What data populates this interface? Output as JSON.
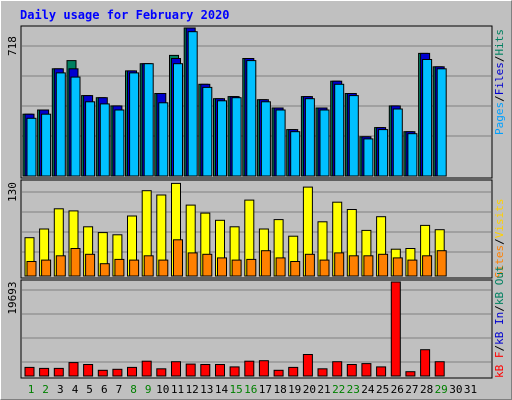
{
  "chart_data": [
    {
      "type": "bar",
      "title": "Daily usage for February 2020",
      "y_label_max": "718",
      "ylabel": [
        {
          "text": "Pages",
          "color": "#00a0ff"
        },
        {
          "text": "Files",
          "color": "#0000d0"
        },
        {
          "text": "Hits",
          "color": "#008060"
        }
      ],
      "ylim": [
        0,
        718
      ],
      "grid": true,
      "categories": [
        "1",
        "2",
        "3",
        "4",
        "5",
        "6",
        "7",
        "8",
        "9",
        "10",
        "11",
        "12",
        "13",
        "14",
        "15",
        "16",
        "17",
        "18",
        "19",
        "20",
        "21",
        "22",
        "23",
        "24",
        "25",
        "26",
        "27",
        "28",
        "29",
        "30",
        "31"
      ],
      "series": [
        {
          "name": "Hits",
          "color": "#008060",
          "values": [
            300,
            320,
            520,
            560,
            390,
            380,
            340,
            510,
            545,
            400,
            585,
            718,
            445,
            375,
            385,
            570,
            370,
            330,
            225,
            385,
            330,
            460,
            400,
            190,
            235,
            340,
            215,
            595,
            530,
            0,
            0
          ]
        },
        {
          "name": "Files",
          "color": "#0000d0",
          "values": [
            300,
            320,
            520,
            520,
            390,
            380,
            340,
            510,
            545,
            400,
            570,
            718,
            445,
            375,
            385,
            570,
            370,
            330,
            225,
            385,
            330,
            460,
            400,
            190,
            235,
            340,
            215,
            595,
            530,
            0,
            0
          ]
        },
        {
          "name": "Pages",
          "color": "#00c0ff",
          "values": [
            280,
            300,
            500,
            480,
            360,
            350,
            320,
            500,
            545,
            355,
            545,
            700,
            430,
            365,
            380,
            560,
            360,
            320,
            215,
            375,
            320,
            445,
            390,
            180,
            225,
            325,
            205,
            565,
            520,
            0,
            0
          ]
        }
      ]
    },
    {
      "type": "bar",
      "y_label_max": "130",
      "ylabel": [
        {
          "text": "Sites",
          "color": "#ff8000"
        },
        {
          "text": "Visits",
          "color": "#ffd000"
        }
      ],
      "ylim": [
        0,
        130
      ],
      "grid": true,
      "categories": [
        "1",
        "2",
        "3",
        "4",
        "5",
        "6",
        "7",
        "8",
        "9",
        "10",
        "11",
        "12",
        "13",
        "14",
        "15",
        "16",
        "17",
        "18",
        "19",
        "20",
        "21",
        "22",
        "23",
        "24",
        "25",
        "26",
        "27",
        "28",
        "29",
        "30",
        "31"
      ],
      "series": [
        {
          "name": "Visits",
          "color": "#ffff00",
          "values": [
            53,
            65,
            93,
            90,
            68,
            60,
            57,
            83,
            118,
            112,
            128,
            98,
            87,
            77,
            68,
            105,
            65,
            78,
            55,
            123,
            75,
            102,
            92,
            63,
            82,
            37,
            38,
            70,
            64,
            0,
            0
          ]
        },
        {
          "name": "Sites",
          "color": "#ff8000",
          "values": [
            20,
            22,
            28,
            38,
            30,
            17,
            23,
            22,
            28,
            22,
            50,
            32,
            30,
            25,
            22,
            23,
            35,
            25,
            20,
            30,
            22,
            32,
            28,
            28,
            30,
            25,
            22,
            28,
            35,
            0,
            0
          ]
        }
      ]
    },
    {
      "type": "bar",
      "y_label_max": "19693",
      "ylabel": [
        {
          "text": "kB F",
          "color": "#ff0000"
        },
        {
          "text": "kB In",
          "color": "#0000d0"
        },
        {
          "text": "kB Out",
          "color": "#008060"
        }
      ],
      "ylim": [
        0,
        19693
      ],
      "grid": true,
      "categories": [
        "1",
        "2",
        "3",
        "4",
        "5",
        "6",
        "7",
        "8",
        "9",
        "10",
        "11",
        "12",
        "13",
        "14",
        "15",
        "16",
        "17",
        "18",
        "19",
        "20",
        "21",
        "22",
        "23",
        "24",
        "25",
        "26",
        "27",
        "28",
        "29",
        "30",
        "31"
      ],
      "series": [
        {
          "name": "kB F",
          "color": "#ff0000",
          "values": [
            1800,
            1600,
            1600,
            2800,
            2400,
            1200,
            1400,
            1800,
            3100,
            1500,
            3000,
            2500,
            2400,
            2400,
            1900,
            3100,
            3200,
            1200,
            1800,
            4500,
            1500,
            3000,
            2400,
            2600,
            1900,
            19693,
            900,
            5500,
            3000,
            0,
            0
          ]
        }
      ]
    }
  ],
  "weekend_days": [
    "1",
    "2",
    "8",
    "9",
    "15",
    "16",
    "22",
    "23",
    "29"
  ],
  "colors": {
    "background": "#c0c0c0",
    "title": "#0000ff",
    "weekend_label": "#008000",
    "weekday_label": "#000000"
  }
}
